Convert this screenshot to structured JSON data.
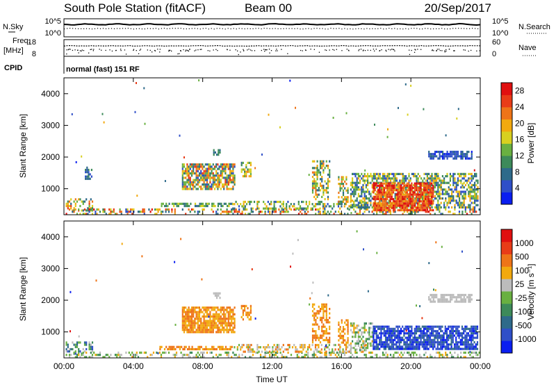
{
  "header": {
    "station": "South Pole Station (fitACF)",
    "beam": "Beam 00",
    "date": "20/Sep/2017"
  },
  "strip_labels": {
    "nsky": "N.Sky",
    "nsearch": "N.Search",
    "freq_top": "Freq.",
    "freq_unit": "[MHz]",
    "nave": "Nave",
    "cpid": "CPID",
    "mode": "normal (fast) 151 RF"
  },
  "noise_strip": {
    "left_ticks": [
      "10^5",
      "10^0"
    ],
    "right_ticks": [
      "10^5",
      "10^0"
    ]
  },
  "freq_strip": {
    "left_ticks": [
      18,
      8
    ],
    "right_ticks": [
      60,
      0
    ]
  },
  "chart_data": [
    {
      "type": "heatmap",
      "name": "power",
      "xlabel": "",
      "ylabel": "Slant Range [km]",
      "x_ticks": [
        "00:00",
        "04:00",
        "08:00",
        "12:00",
        "16:00",
        "20:00",
        "00:00"
      ],
      "xlim_hours": [
        0,
        24
      ],
      "ylim": [
        180,
        4500
      ],
      "y_ticks": [
        1000,
        2000,
        3000,
        4000
      ],
      "colorbar": {
        "label": "Power [dB]",
        "ticks": [
          4,
          8,
          12,
          16,
          20,
          24,
          28
        ],
        "range": [
          0,
          30
        ],
        "colors": [
          "#0a1ef0",
          "#2f4fc8",
          "#2e6a8a",
          "#3d8a5a",
          "#69b041",
          "#d8d020",
          "#f2a90f",
          "#ee7418",
          "#e83c18",
          "#e01010"
        ]
      },
      "regions": [
        {
          "t0": 0.1,
          "t1": 1.6,
          "r0": 280,
          "r1": 700,
          "v0": 6,
          "v1": 26,
          "density": 0.45
        },
        {
          "t0": 0.1,
          "t1": 23.9,
          "r0": 200,
          "r1": 380,
          "v0": 4,
          "v1": 28,
          "density": 0.35
        },
        {
          "t0": 5.5,
          "t1": 9.7,
          "r0": 420,
          "r1": 560,
          "v0": 6,
          "v1": 16,
          "density": 0.7
        },
        {
          "t0": 9.7,
          "t1": 17.5,
          "r0": 340,
          "r1": 620,
          "v0": 4,
          "v1": 20,
          "density": 0.45
        },
        {
          "t0": 6.8,
          "t1": 9.8,
          "r0": 1000,
          "r1": 1800,
          "v0": 4,
          "v1": 26,
          "density": 0.75
        },
        {
          "t0": 8.6,
          "t1": 9.0,
          "r0": 2050,
          "r1": 2250,
          "v0": 6,
          "v1": 12,
          "density": 0.7
        },
        {
          "t0": 10.2,
          "t1": 10.8,
          "r0": 1400,
          "r1": 1850,
          "v0": 8,
          "v1": 22,
          "density": 0.6
        },
        {
          "t0": 1.2,
          "t1": 1.6,
          "r0": 1300,
          "r1": 1700,
          "v0": 4,
          "v1": 10,
          "density": 0.45
        },
        {
          "t0": 14.3,
          "t1": 15.3,
          "r0": 700,
          "r1": 1900,
          "v0": 6,
          "v1": 24,
          "density": 0.5
        },
        {
          "t0": 15.8,
          "t1": 16.4,
          "r0": 550,
          "r1": 1400,
          "v0": 6,
          "v1": 24,
          "density": 0.45
        },
        {
          "t0": 16.5,
          "t1": 23.9,
          "r0": 420,
          "r1": 1500,
          "v0": 4,
          "v1": 20,
          "density": 0.6
        },
        {
          "t0": 17.8,
          "t1": 21.3,
          "r0": 350,
          "r1": 1200,
          "v0": 20,
          "v1": 30,
          "density": 0.8
        },
        {
          "t0": 21.0,
          "t1": 23.5,
          "r0": 1950,
          "r1": 2200,
          "v0": 2,
          "v1": 8,
          "density": 0.75
        }
      ]
    },
    {
      "type": "heatmap",
      "name": "velocity",
      "xlabel": "Time UT",
      "ylabel": "Slant Range [km]",
      "x_ticks": [
        "00:00",
        "04:00",
        "08:00",
        "12:00",
        "16:00",
        "20:00",
        "00:00"
      ],
      "xlim_hours": [
        0,
        24
      ],
      "ylim": [
        180,
        4500
      ],
      "y_ticks": [
        1000,
        2000,
        3000,
        4000
      ],
      "colorbar": {
        "label": "Velocity [m s⁻¹]",
        "ticks": [
          1000,
          500,
          100,
          25,
          -25,
          -100,
          -500,
          -1000
        ],
        "colors": [
          "#0a1ef0",
          "#2f4fc8",
          "#2e6a8a",
          "#3d8a5a",
          "#69b041",
          "#bcbcbc",
          "#f2a90f",
          "#ee7418",
          "#e83c18",
          "#e01010"
        ]
      },
      "regions": [
        {
          "t0": 0.1,
          "t1": 1.6,
          "r0": 280,
          "r1": 700,
          "v0": 1,
          "v1": 5,
          "density": 0.45
        },
        {
          "t0": 0.1,
          "t1": 23.9,
          "r0": 200,
          "r1": 380,
          "v0": 3,
          "v1": 6,
          "density": 0.35
        },
        {
          "t0": 5.5,
          "t1": 9.7,
          "r0": 420,
          "r1": 560,
          "v0": 6,
          "v1": 7,
          "density": 0.7
        },
        {
          "t0": 9.7,
          "t1": 17.5,
          "r0": 340,
          "r1": 620,
          "v0": 4,
          "v1": 7,
          "density": 0.45
        },
        {
          "t0": 6.8,
          "t1": 9.8,
          "r0": 1000,
          "r1": 1800,
          "v0": 6,
          "v1": 7,
          "density": 0.8
        },
        {
          "t0": 8.6,
          "t1": 9.0,
          "r0": 2050,
          "r1": 2250,
          "v0": 5,
          "v1": 5,
          "density": 0.7
        },
        {
          "t0": 10.2,
          "t1": 10.8,
          "r0": 1400,
          "r1": 1850,
          "v0": 6,
          "v1": 7,
          "density": 0.6
        },
        {
          "t0": 14.3,
          "t1": 15.3,
          "r0": 700,
          "r1": 1900,
          "v0": 6,
          "v1": 7,
          "density": 0.5
        },
        {
          "t0": 15.8,
          "t1": 16.4,
          "r0": 550,
          "r1": 1400,
          "v0": 6,
          "v1": 7,
          "density": 0.45
        },
        {
          "t0": 16.5,
          "t1": 17.8,
          "r0": 420,
          "r1": 1300,
          "v0": 3,
          "v1": 6,
          "density": 0.5
        },
        {
          "t0": 17.8,
          "t1": 23.8,
          "r0": 450,
          "r1": 1200,
          "v0": 0,
          "v1": 2,
          "density": 0.8
        },
        {
          "t0": 21.0,
          "t1": 23.5,
          "r0": 1950,
          "r1": 2200,
          "v0": 5,
          "v1": 5,
          "density": 0.75
        }
      ]
    }
  ]
}
